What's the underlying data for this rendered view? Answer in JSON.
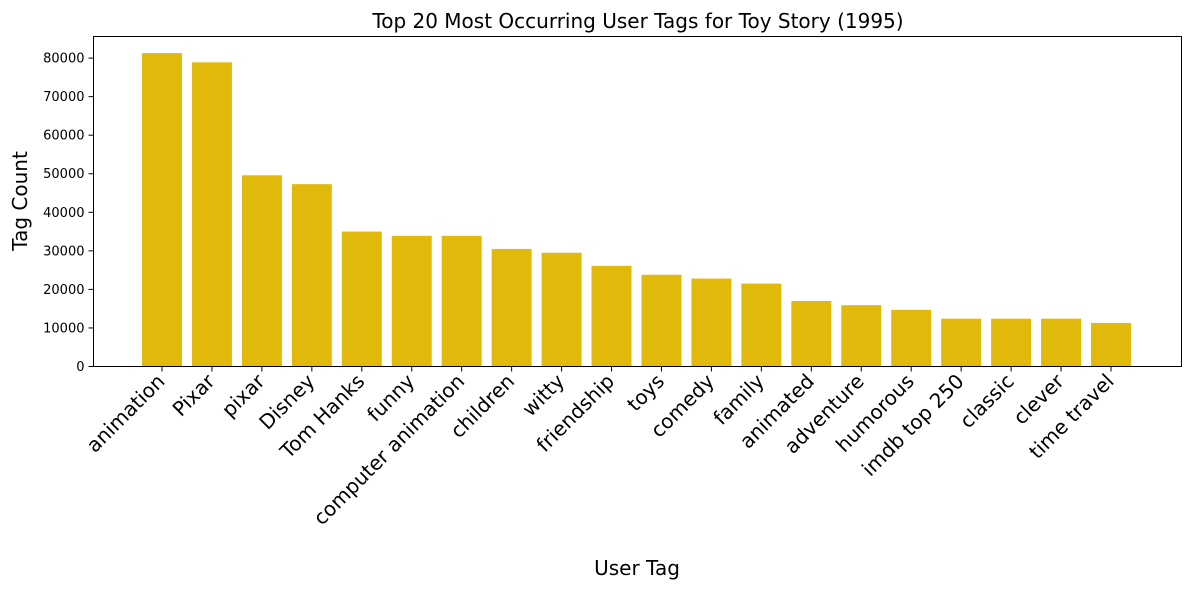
{
  "chart_data": {
    "type": "bar",
    "title": "Top 20 Most Occurring User Tags for Toy Story (1995)",
    "xlabel": "User Tag",
    "ylabel": "Tag Count",
    "categories": [
      "animation",
      "Pixar",
      "pixar",
      "Disney",
      "Tom Hanks",
      "funny",
      "computer animation",
      "children",
      "witty",
      "friendship",
      "toys",
      "comedy",
      "family",
      "animated",
      "adventure",
      "humorous",
      "imdb top 250",
      "classic",
      "clever",
      "time travel"
    ],
    "values": [
      81300,
      78900,
      49600,
      47300,
      35000,
      33900,
      33900,
      30500,
      29500,
      26100,
      23800,
      22800,
      21500,
      17000,
      15900,
      14700,
      12400,
      12400,
      12400,
      11300
    ],
    "ylim": [
      0,
      85600
    ],
    "yticks": [
      0,
      10000,
      20000,
      30000,
      40000,
      50000,
      60000,
      70000,
      80000
    ],
    "bar_color": "#e0b90b",
    "grid": false,
    "legend": "none"
  }
}
